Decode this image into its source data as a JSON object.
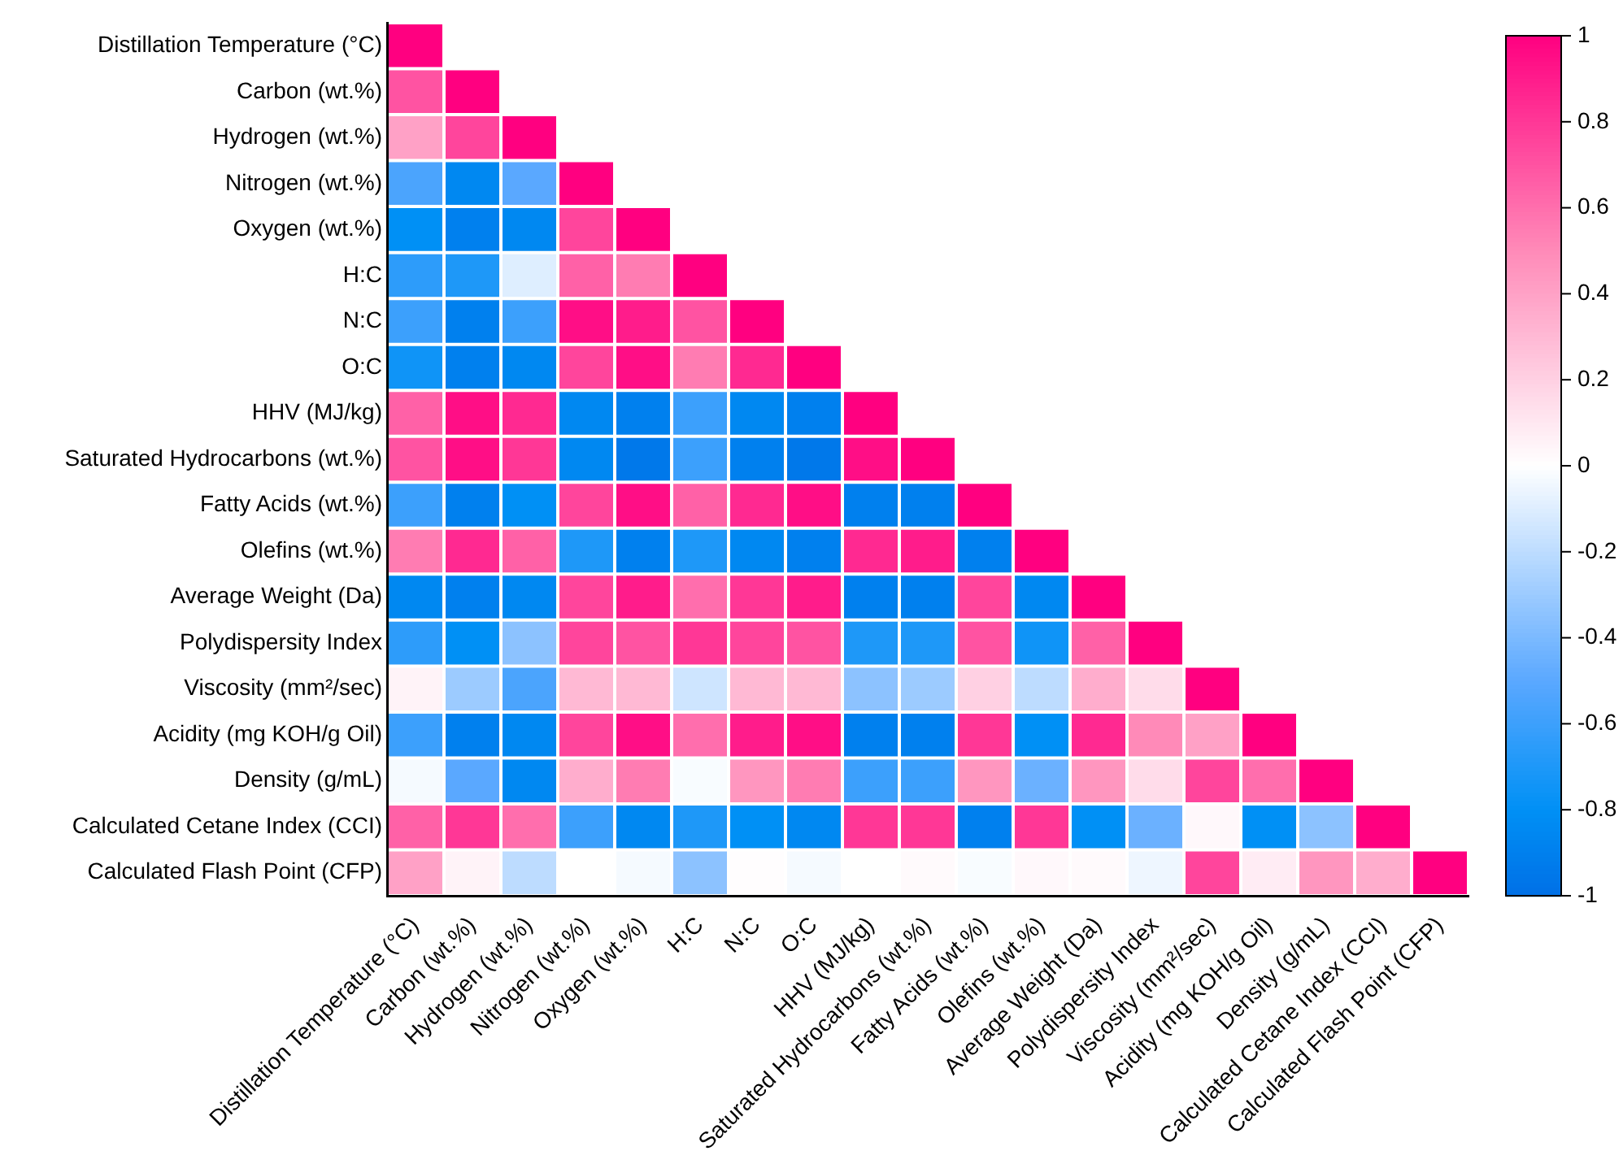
{
  "chart_data": {
    "type": "heatmap",
    "categories": [
      "Distillation Temperature (°C)",
      "Carbon (wt.%)",
      "Hydrogen (wt.%)",
      "Nitrogen (wt.%)",
      "Oxygen (wt.%)",
      "H:C",
      "N:C",
      "O:C",
      "HHV (MJ/kg)",
      "Saturated Hydrocarbons (wt.%)",
      "Fatty Acids (wt.%)",
      "Olefins (wt.%)",
      "Average Weight (Da)",
      "Polydispersity Index",
      "Viscosity (mm²/sec)",
      "Acidity (mg KOH/g Oil)",
      "Density (g/mL)",
      "Calculated Cetane Index (CCI)",
      "Calculated Flash Point (CFP)"
    ],
    "y_categories": [
      "Distillation Temperature (°C)",
      "Carbon (wt.%)",
      "Hydrogen (wt.%)",
      "Nitrogen (wt.%)",
      "Oxygen (wt.%)",
      "H:C",
      "N:C",
      "O:C",
      "HHV (MJ/kg)",
      "Saturated Hydrocarbons (wt.%)",
      "Fatty Acids (wt.%)",
      "Olefins (wt.%)",
      "Average Weight (Da)",
      "Polydispersity Index",
      "Viscosity (mm²/sec)",
      "Acidity (mg KOH/g Oil)",
      "Density (g/mL)",
      "Calculated Cetane Index (CCI)",
      "Calculated Flash Point (CFP)"
    ],
    "cells": [
      [
        1,
        null,
        null,
        null,
        null,
        null,
        null,
        null,
        null,
        null,
        null,
        null,
        null,
        null,
        null,
        null,
        null,
        null,
        null
      ],
      [
        0.7,
        1,
        null,
        null,
        null,
        null,
        null,
        null,
        null,
        null,
        null,
        null,
        null,
        null,
        null,
        null,
        null,
        null,
        null
      ],
      [
        0.4,
        0.75,
        1,
        null,
        null,
        null,
        null,
        null,
        null,
        null,
        null,
        null,
        null,
        null,
        null,
        null,
        null,
        null,
        null
      ],
      [
        -0.55,
        -0.85,
        -0.5,
        1,
        null,
        null,
        null,
        null,
        null,
        null,
        null,
        null,
        null,
        null,
        null,
        null,
        null,
        null,
        null
      ],
      [
        -0.8,
        -0.9,
        -0.85,
        0.75,
        1,
        null,
        null,
        null,
        null,
        null,
        null,
        null,
        null,
        null,
        null,
        null,
        null,
        null,
        null
      ],
      [
        -0.65,
        -0.7,
        -0.1,
        0.65,
        0.55,
        1,
        null,
        null,
        null,
        null,
        null,
        null,
        null,
        null,
        null,
        null,
        null,
        null,
        null
      ],
      [
        -0.6,
        -0.9,
        -0.6,
        0.95,
        0.9,
        0.7,
        1,
        null,
        null,
        null,
        null,
        null,
        null,
        null,
        null,
        null,
        null,
        null,
        null
      ],
      [
        -0.75,
        -0.9,
        -0.85,
        0.75,
        0.95,
        0.55,
        0.85,
        1,
        null,
        null,
        null,
        null,
        null,
        null,
        null,
        null,
        null,
        null,
        null
      ],
      [
        0.65,
        0.95,
        0.85,
        -0.85,
        -0.9,
        -0.6,
        -0.85,
        -0.9,
        1,
        null,
        null,
        null,
        null,
        null,
        null,
        null,
        null,
        null,
        null
      ],
      [
        0.7,
        0.95,
        0.8,
        -0.85,
        -0.95,
        -0.6,
        -0.9,
        -0.95,
        0.95,
        1,
        null,
        null,
        null,
        null,
        null,
        null,
        null,
        null,
        null
      ],
      [
        -0.6,
        -0.9,
        -0.8,
        0.75,
        0.95,
        0.65,
        0.85,
        0.95,
        -0.9,
        -0.9,
        1,
        null,
        null,
        null,
        null,
        null,
        null,
        null,
        null
      ],
      [
        0.55,
        0.85,
        0.65,
        -0.7,
        -0.9,
        -0.7,
        -0.85,
        -0.9,
        0.85,
        0.9,
        -0.9,
        1,
        null,
        null,
        null,
        null,
        null,
        null,
        null
      ],
      [
        -0.85,
        -0.9,
        -0.85,
        0.75,
        0.9,
        0.6,
        0.8,
        0.9,
        -0.9,
        -0.9,
        0.75,
        -0.85,
        1,
        null,
        null,
        null,
        null,
        null,
        null
      ],
      [
        -0.65,
        -0.8,
        -0.35,
        0.75,
        0.7,
        0.8,
        0.75,
        0.7,
        -0.7,
        -0.7,
        0.7,
        -0.75,
        0.65,
        1,
        null,
        null,
        null,
        null,
        null
      ],
      [
        0.05,
        -0.3,
        -0.55,
        0.3,
        0.3,
        -0.15,
        0.3,
        0.3,
        -0.35,
        -0.3,
        0.2,
        -0.2,
        0.35,
        0.15,
        1,
        null,
        null,
        null,
        null
      ],
      [
        -0.6,
        -0.9,
        -0.85,
        0.75,
        0.95,
        0.6,
        0.9,
        0.95,
        -0.9,
        -0.9,
        0.8,
        -0.8,
        0.85,
        0.5,
        0.4,
        1,
        null,
        null,
        null
      ],
      [
        -0.03,
        -0.5,
        -0.85,
        0.35,
        0.55,
        -0.02,
        0.45,
        0.55,
        -0.6,
        -0.6,
        0.45,
        -0.45,
        0.45,
        0.15,
        0.75,
        0.6,
        1,
        null,
        null
      ],
      [
        0.65,
        0.8,
        0.6,
        -0.6,
        -0.85,
        -0.7,
        -0.8,
        -0.85,
        0.8,
        0.8,
        -0.9,
        0.8,
        -0.8,
        -0.45,
        0.03,
        -0.8,
        -0.35,
        1,
        null
      ],
      [
        0.4,
        0.05,
        -0.2,
        0,
        -0.03,
        -0.35,
        0.01,
        -0.03,
        0,
        0.02,
        -0.02,
        0.03,
        0.02,
        -0.05,
        0.75,
        0.08,
        0.45,
        0.35,
        1
      ]
    ],
    "clim": [
      -1,
      1
    ],
    "cticks": [
      -1,
      -0.8,
      -0.6,
      -0.4,
      -0.2,
      0,
      0.2,
      0.4,
      0.6,
      0.8,
      1
    ]
  }
}
